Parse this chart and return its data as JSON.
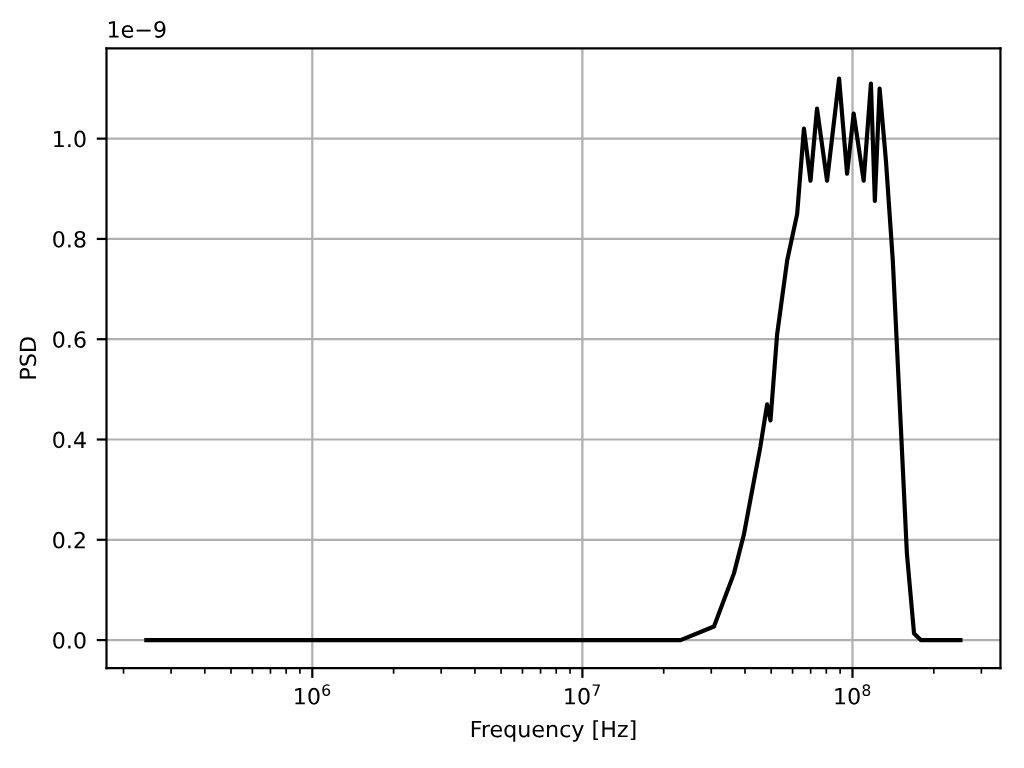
{
  "chart_data": {
    "type": "line",
    "xlabel": "Frequency [Hz]",
    "ylabel": "PSD",
    "log": "x",
    "grid": true,
    "annotations": [
      "1e−9"
    ],
    "xlim": [
      173000,
      353000000
    ],
    "ylim": [
      -0.056,
      1.18
    ],
    "xticks": [
      {
        "value": 1000000,
        "label": "10$^{6}$"
      },
      {
        "value": 10000000,
        "label": "10$^{7}$"
      },
      {
        "value": 100000000,
        "label": "10$^{8}$"
      }
    ],
    "yticks": [
      {
        "value": 0,
        "label": "0.0"
      },
      {
        "value": 0.2,
        "label": "0.2"
      },
      {
        "value": 0.4,
        "label": "0.4"
      },
      {
        "value": 0.6,
        "label": "0.6"
      },
      {
        "value": 0.8,
        "label": "0.8"
      },
      {
        "value": 1.0,
        "label": "1.0"
      }
    ],
    "series": [
      {
        "color": "#000000",
        "x": [
          243000,
          1000000,
          10000000,
          23100000,
          30700000,
          36400000,
          39600000,
          45600000,
          48300000,
          49700000,
          52600000,
          57300000,
          62400000,
          66100000,
          69900000,
          73900000,
          80500000,
          89200000,
          95500000,
          101000000,
          110000000,
          117000000,
          121000000,
          126000000,
          133000000,
          141000000,
          151000000,
          159000000,
          169000000,
          179000000,
          251000000
        ],
        "values": [
          0,
          0,
          0,
          0,
          0.027,
          0.133,
          0.21,
          0.386,
          0.47,
          0.438,
          0.61,
          0.757,
          0.85,
          1.02,
          0.916,
          1.06,
          0.916,
          1.12,
          0.93,
          1.05,
          0.916,
          1.11,
          0.876,
          1.1,
          0.956,
          0.757,
          0.425,
          0.173,
          0.013,
          0,
          0
        ]
      }
    ]
  }
}
